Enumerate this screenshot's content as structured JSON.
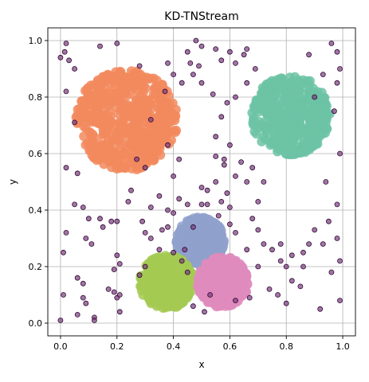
{
  "chart_data": {
    "type": "scatter",
    "title": "KD-TNStream",
    "xlabel": "x",
    "ylabel": "y",
    "xlim": [
      -0.045,
      1.045
    ],
    "ylim": [
      -0.045,
      1.045
    ],
    "xticks": [
      "0.0",
      "0.2",
      "0.4",
      "0.6",
      "0.8",
      "1.0"
    ],
    "yticks": [
      "0.0",
      "0.2",
      "0.4",
      "0.6",
      "0.8",
      "1.0"
    ],
    "grid": true,
    "colors": {
      "cluster_orange": "#f28a5e",
      "cluster_teal": "#6cc3a4",
      "cluster_blue": "#8fa1cb",
      "cluster_green": "#a5ca52",
      "cluster_pink": "#df8bbd",
      "outlier_fill": "#7a3a7e",
      "outlier_edge": "#2e0a33"
    },
    "clusters": [
      {
        "color_key": "cluster_orange",
        "center": [
          0.235,
          0.72
        ],
        "radius": 0.18,
        "count": 520
      },
      {
        "color_key": "cluster_teal",
        "center": [
          0.815,
          0.735
        ],
        "radius": 0.14,
        "count": 420
      },
      {
        "color_key": "cluster_blue",
        "center": [
          0.495,
          0.29
        ],
        "radius": 0.085,
        "count": 380
      },
      {
        "color_key": "cluster_green",
        "center": [
          0.375,
          0.145
        ],
        "radius": 0.095,
        "count": 420
      },
      {
        "color_key": "cluster_pink",
        "center": [
          0.575,
          0.145
        ],
        "radius": 0.09,
        "count": 400
      }
    ],
    "outliers": [
      [
        0.02,
        0.99
      ],
      [
        0.0,
        0.94
      ],
      [
        0.03,
        0.93
      ],
      [
        0.015,
        0.96
      ],
      [
        0.05,
        0.9
      ],
      [
        0.02,
        0.82
      ],
      [
        0.05,
        0.71
      ],
      [
        0.02,
        0.55
      ],
      [
        0.06,
        0.53
      ],
      [
        0.05,
        0.42
      ],
      [
        0.08,
        0.41
      ],
      [
        0.1,
        0.37
      ],
      [
        0.02,
        0.32
      ],
      [
        0.01,
        0.25
      ],
      [
        0.09,
        0.3
      ],
      [
        0.11,
        0.28
      ],
      [
        0.06,
        0.16
      ],
      [
        0.08,
        0.14
      ],
      [
        0.01,
        0.1
      ],
      [
        0.08,
        0.09
      ],
      [
        0.06,
        0.03
      ],
      [
        0.09,
        0.07
      ],
      [
        0.12,
        0.02
      ],
      [
        0.12,
        0.01
      ],
      [
        0.0,
        0.01
      ],
      [
        0.15,
        0.34
      ],
      [
        0.14,
        0.37
      ],
      [
        0.18,
        0.36
      ],
      [
        0.2,
        0.36
      ],
      [
        0.2,
        0.24
      ],
      [
        0.21,
        0.21
      ],
      [
        0.19,
        0.19
      ],
      [
        0.2,
        0.09
      ],
      [
        0.21,
        0.1
      ],
      [
        0.19,
        0.11
      ],
      [
        0.17,
        0.12
      ],
      [
        0.21,
        0.04
      ],
      [
        0.24,
        0.43
      ],
      [
        0.29,
        0.36
      ],
      [
        0.3,
        0.32
      ],
      [
        0.32,
        0.3
      ],
      [
        0.36,
        0.33
      ],
      [
        0.38,
        0.34
      ],
      [
        0.4,
        0.39
      ],
      [
        0.42,
        0.44
      ],
      [
        0.45,
        0.42
      ],
      [
        0.5,
        0.42
      ],
      [
        0.52,
        0.42
      ],
      [
        0.5,
        0.48
      ],
      [
        0.52,
        0.47
      ],
      [
        0.55,
        0.5
      ],
      [
        0.57,
        0.43
      ],
      [
        0.56,
        0.38
      ],
      [
        0.6,
        0.41
      ],
      [
        0.6,
        0.35
      ],
      [
        0.62,
        0.32
      ],
      [
        0.59,
        0.46
      ],
      [
        0.58,
        0.58
      ],
      [
        0.55,
        0.59
      ],
      [
        0.58,
        0.56
      ],
      [
        0.6,
        0.63
      ],
      [
        0.62,
        0.52
      ],
      [
        0.55,
        0.66
      ],
      [
        0.57,
        0.73
      ],
      [
        0.54,
        0.81
      ],
      [
        0.59,
        0.78
      ],
      [
        0.5,
        0.85
      ],
      [
        0.47,
        0.88
      ],
      [
        0.46,
        0.92
      ],
      [
        0.45,
        0.96
      ],
      [
        0.49,
        0.91
      ],
      [
        0.5,
        0.98
      ],
      [
        0.48,
        1.0
      ],
      [
        0.55,
        0.97
      ],
      [
        0.57,
        0.93
      ],
      [
        0.62,
        0.92
      ],
      [
        0.6,
        0.96
      ],
      [
        0.65,
        0.95
      ],
      [
        0.66,
        0.85
      ],
      [
        0.62,
        0.8
      ],
      [
        0.64,
        0.57
      ],
      [
        0.68,
        0.55
      ],
      [
        0.66,
        0.5
      ],
      [
        0.7,
        0.43
      ],
      [
        0.68,
        0.37
      ],
      [
        0.7,
        0.33
      ],
      [
        0.72,
        0.28
      ],
      [
        0.75,
        0.26
      ],
      [
        0.78,
        0.28
      ],
      [
        0.78,
        0.22
      ],
      [
        0.82,
        0.24
      ],
      [
        0.86,
        0.25
      ],
      [
        0.88,
        0.28
      ],
      [
        0.9,
        0.33
      ],
      [
        0.93,
        0.28
      ],
      [
        0.86,
        0.2
      ],
      [
        0.8,
        0.2
      ],
      [
        0.74,
        0.12
      ],
      [
        0.77,
        0.1
      ],
      [
        0.8,
        0.07
      ],
      [
        0.82,
        0.15
      ],
      [
        0.85,
        0.13
      ],
      [
        0.92,
        0.05
      ],
      [
        0.96,
        0.18
      ],
      [
        0.99,
        0.22
      ],
      [
        0.99,
        0.08
      ],
      [
        0.98,
        0.3
      ],
      [
        0.95,
        0.36
      ],
      [
        0.98,
        0.42
      ],
      [
        0.94,
        0.5
      ],
      [
        0.99,
        0.6
      ],
      [
        0.97,
        0.75
      ],
      [
        0.98,
        0.85
      ],
      [
        0.99,
        0.9
      ],
      [
        0.98,
        0.96
      ],
      [
        0.96,
        0.99
      ],
      [
        0.93,
        0.88
      ],
      [
        0.9,
        0.8
      ],
      [
        0.88,
        0.95
      ],
      [
        0.72,
        0.5
      ],
      [
        0.69,
        0.9
      ],
      [
        0.66,
        0.97
      ],
      [
        0.3,
        0.55
      ],
      [
        0.27,
        0.58
      ],
      [
        0.32,
        0.72
      ],
      [
        0.38,
        0.63
      ],
      [
        0.4,
        0.52
      ],
      [
        0.42,
        0.58
      ],
      [
        0.35,
        0.45
      ],
      [
        0.32,
        0.41
      ],
      [
        0.25,
        0.47
      ],
      [
        0.28,
        0.17
      ],
      [
        0.3,
        0.2
      ],
      [
        0.45,
        0.18
      ],
      [
        0.47,
        0.06
      ],
      [
        0.51,
        0.04
      ],
      [
        0.53,
        0.1
      ],
      [
        0.62,
        0.08
      ],
      [
        0.67,
        0.09
      ],
      [
        0.7,
        0.2
      ],
      [
        0.66,
        0.26
      ],
      [
        0.44,
        0.26
      ],
      [
        0.43,
        0.22
      ],
      [
        0.4,
        0.25
      ],
      [
        0.35,
        0.26
      ],
      [
        0.38,
        0.4
      ],
      [
        0.47,
        0.34
      ],
      [
        0.14,
        0.98
      ],
      [
        0.2,
        0.99
      ],
      [
        0.28,
        0.91
      ],
      [
        0.38,
        0.92
      ],
      [
        0.43,
        0.85
      ],
      [
        0.4,
        0.88
      ],
      [
        0.37,
        0.82
      ]
    ]
  }
}
